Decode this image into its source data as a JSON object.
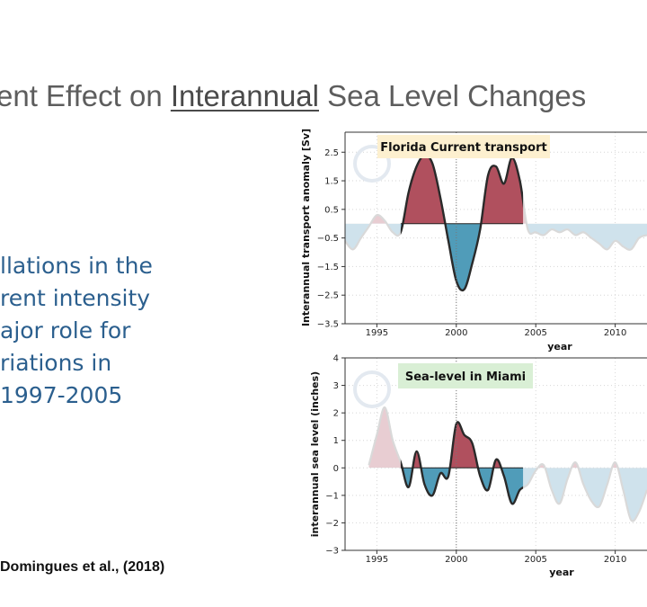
{
  "slide": {
    "title_pre": "ent Effect on ",
    "title_link": "Interannual",
    "title_post": " Sea Level Changes",
    "bullet_lines": [
      "llations in the",
      "rent intensity",
      "ajor role for",
      "riations in",
      " 1997-2005"
    ],
    "citation": "Domingues et al., (2018)"
  },
  "colors": {
    "positive": "#a63a4a",
    "negative": "#3a8fb0",
    "faded_pos": "#e8cdd2",
    "faded_neg": "#cfe2ec",
    "title_text": "#5d5d5d",
    "bullet_text": "#2b5f8e"
  },
  "chart_data": [
    {
      "type": "area",
      "title": "Florida Current transport",
      "xlabel": "year",
      "ylabel": "Interannual transport anomaly [Sv]",
      "xlim": [
        1993,
        2012
      ],
      "ylim": [
        -3.5,
        3.2
      ],
      "xticks": [
        "1995",
        "2000",
        "2005",
        "2010"
      ],
      "yticks": [
        "2.5",
        "1.5",
        "0.5",
        "−0.5",
        "−1.5",
        "−2.5",
        "−3.5"
      ],
      "highlight_range": [
        1996.5,
        2004.2
      ],
      "vline": 2000,
      "grid": true,
      "x": [
        1993,
        1993.5,
        1994,
        1994.5,
        1995,
        1995.5,
        1996,
        1996.5,
        1997,
        1997.5,
        1998,
        1998.5,
        1999,
        1999.5,
        2000,
        2000.5,
        2001,
        2001.5,
        2002,
        2002.5,
        2003,
        2003.5,
        2004,
        2004.5,
        2005,
        2005.5,
        2006,
        2006.5,
        2007,
        2007.5,
        2008,
        2008.5,
        2009,
        2009.5,
        2010,
        2010.5,
        2011,
        2011.5,
        2012
      ],
      "values": [
        -0.6,
        -0.9,
        -0.5,
        -0.1,
        0.3,
        0.1,
        -0.3,
        -0.3,
        1.1,
        2.0,
        2.4,
        2.1,
        0.9,
        -0.6,
        -2.0,
        -2.3,
        -1.4,
        -0.2,
        1.7,
        2.0,
        1.4,
        2.3,
        1.5,
        -0.2,
        -0.3,
        -0.4,
        -0.2,
        -0.3,
        -0.2,
        -0.4,
        -0.3,
        -0.5,
        -0.7,
        -0.9,
        -0.6,
        -0.8,
        -0.9,
        -0.5,
        -0.4
      ]
    },
    {
      "type": "area",
      "title": "Sea-level in Miami",
      "xlabel": "year",
      "ylabel": "interannual sea level (inches)",
      "xlim": [
        1993,
        2012
      ],
      "ylim": [
        -3,
        4
      ],
      "xticks": [
        "1995",
        "2000",
        "2005",
        "2010"
      ],
      "yticks": [
        "4",
        "3",
        "2",
        "1",
        "0",
        "−1",
        "−2",
        "−3"
      ],
      "highlight_range": [
        1996.5,
        2004.2
      ],
      "vline": 2000,
      "grid": true,
      "x": [
        1994.5,
        1995,
        1995.5,
        1996,
        1996.5,
        1997,
        1997.5,
        1998,
        1998.5,
        1999,
        1999.5,
        2000,
        2000.5,
        2001,
        2001.5,
        2002,
        2002.5,
        2003,
        2003.5,
        2004,
        2004.5,
        2005,
        2005.5,
        2006,
        2006.5,
        2007,
        2007.5,
        2008,
        2008.5,
        2009,
        2009.5,
        2010,
        2010.5,
        2011,
        2011.5,
        2012
      ],
      "values": [
        0.1,
        1.2,
        2.2,
        1.0,
        0.2,
        -0.7,
        0.6,
        -0.6,
        -1.0,
        -0.2,
        -0.3,
        1.6,
        1.2,
        0.9,
        -0.3,
        -0.8,
        0.3,
        -0.3,
        -1.3,
        -0.8,
        -0.6,
        -0.1,
        0.1,
        -0.8,
        -1.3,
        -0.4,
        0.2,
        -0.6,
        -1.2,
        -1.4,
        -0.6,
        0.2,
        -0.8,
        -1.9,
        -1.6,
        -0.8
      ]
    }
  ]
}
